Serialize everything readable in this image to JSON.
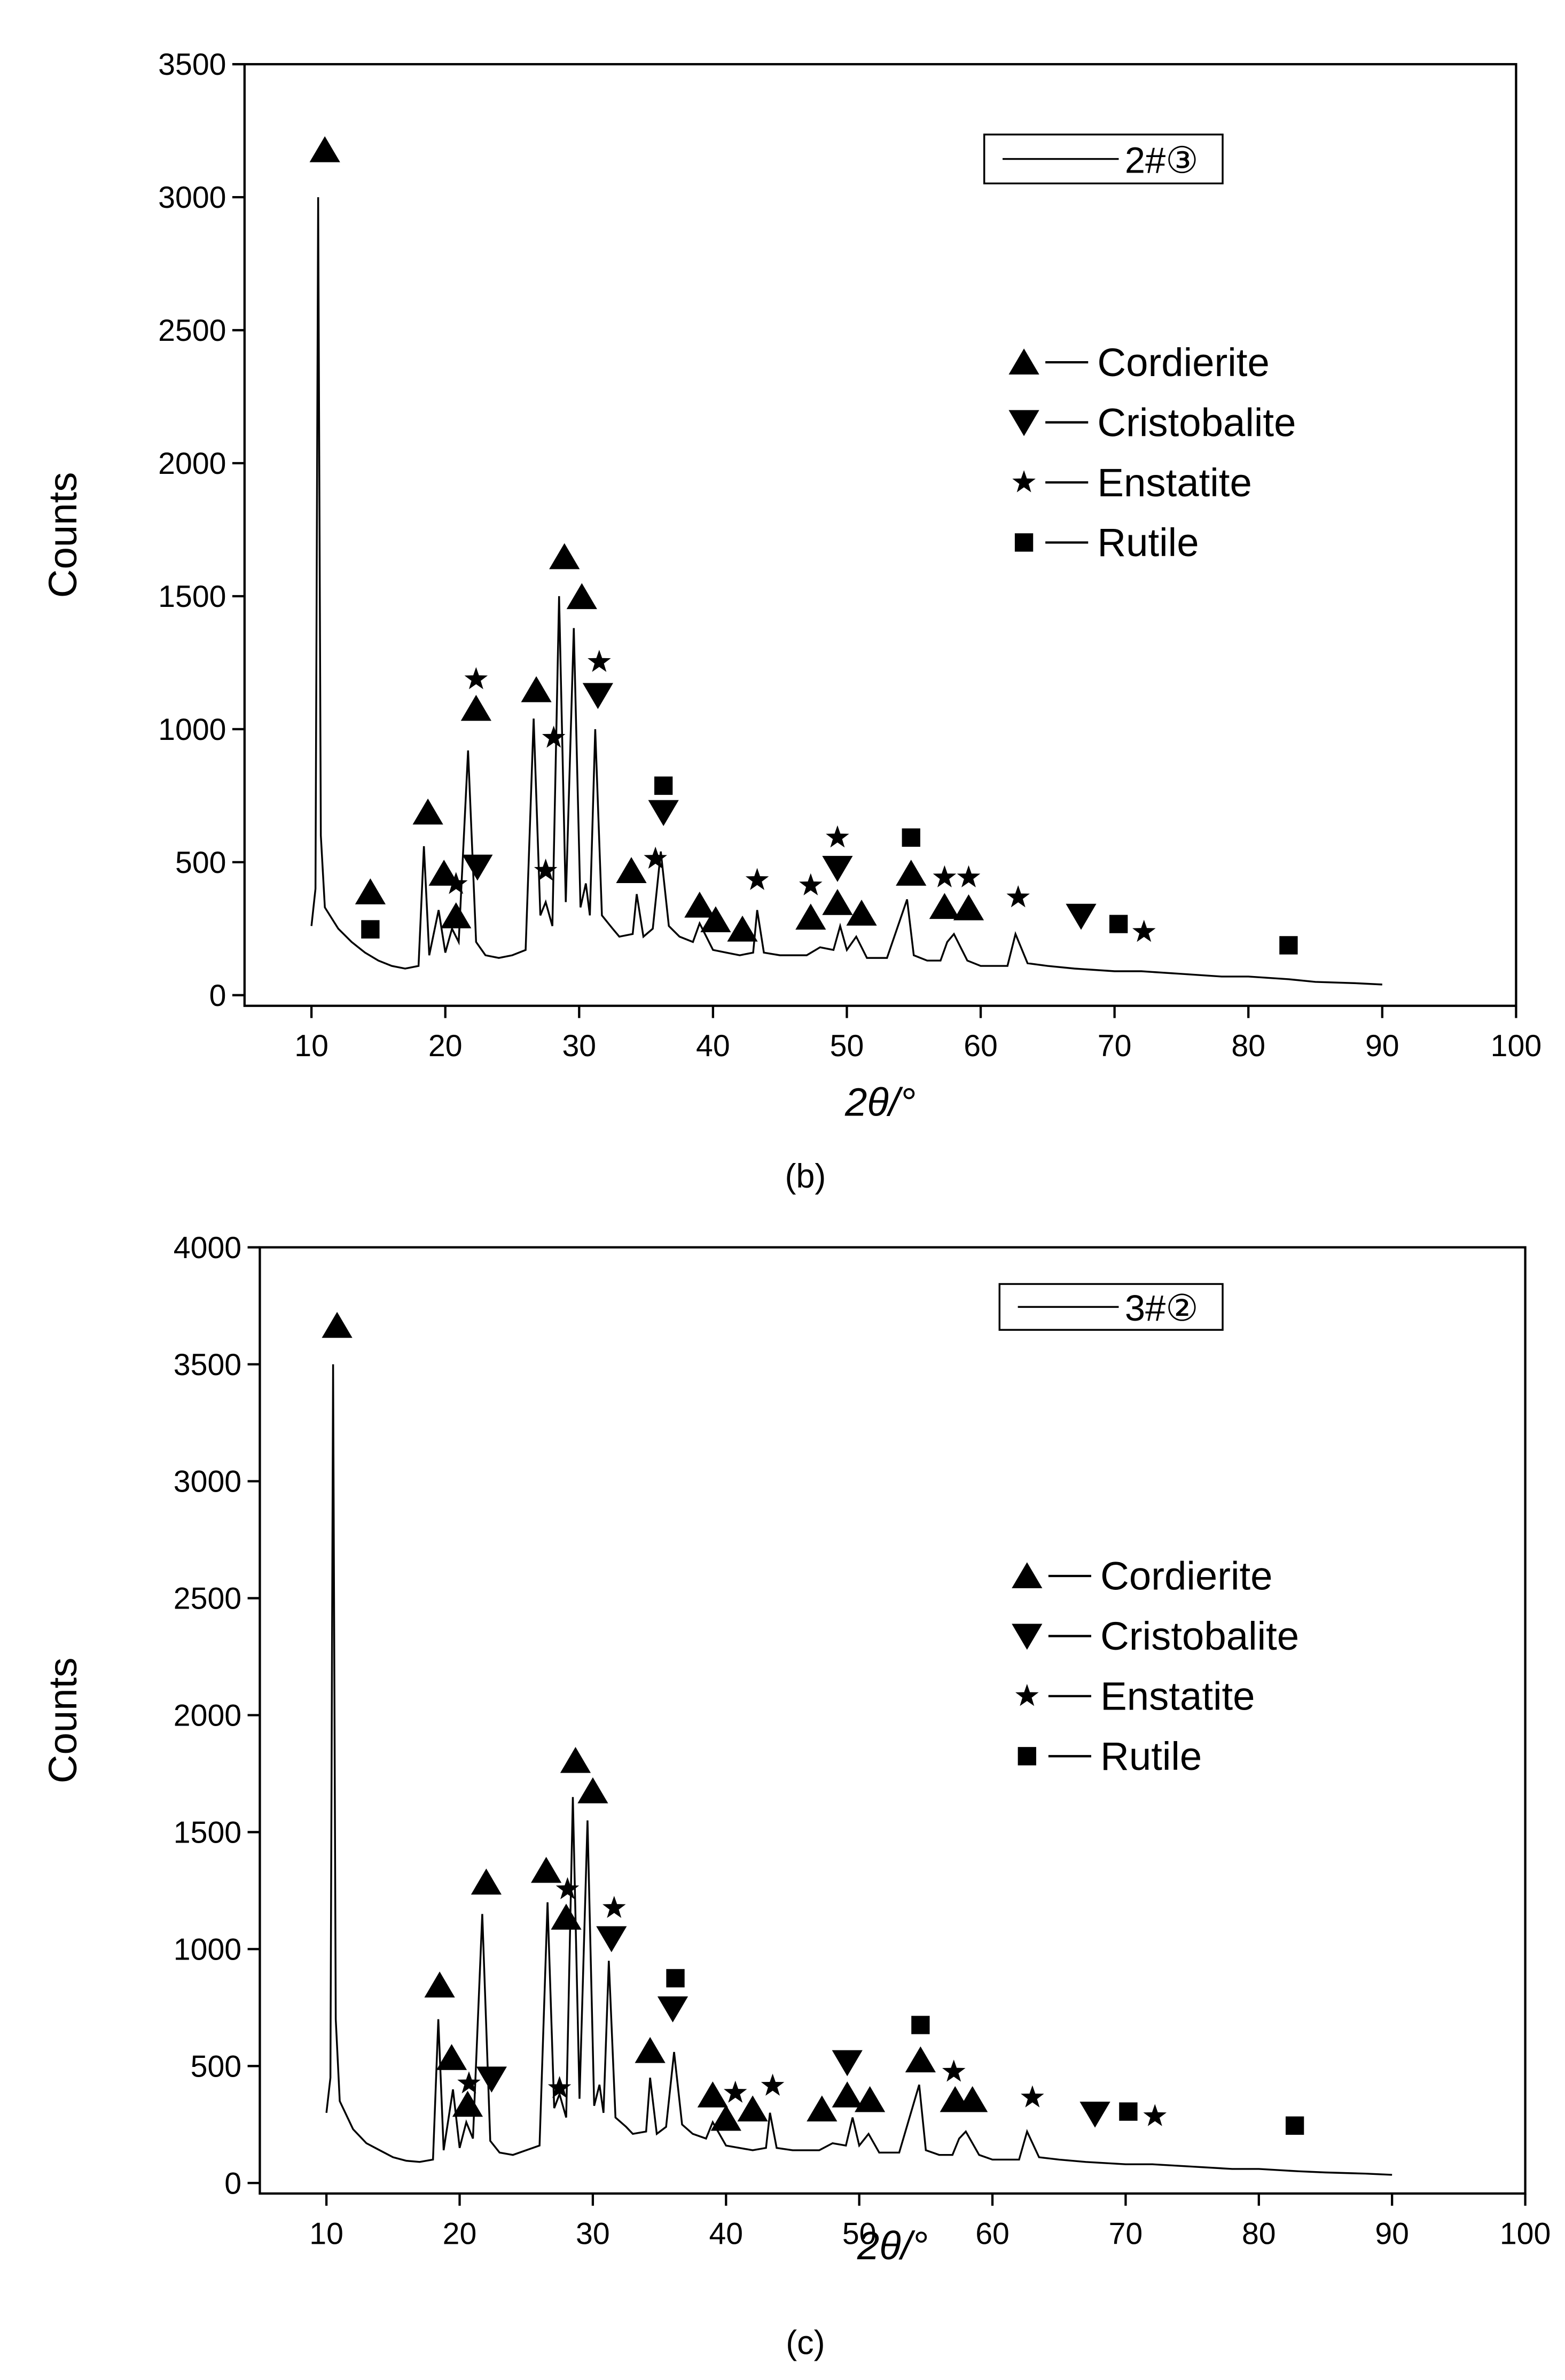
{
  "chart_data": [
    {
      "type": "line",
      "caption": "(b)",
      "xlabel": "2θ/°",
      "ylabel": "Counts",
      "xlim": [
        5,
        100
      ],
      "xticks": [
        10,
        20,
        30,
        40,
        50,
        60,
        70,
        80,
        90,
        100
      ],
      "ylim": [
        -40,
        3500
      ],
      "yticks": [
        0,
        500,
        1000,
        1500,
        2000,
        2500,
        3000,
        3500
      ],
      "x": [
        10,
        10.3,
        10.5,
        10.7,
        11,
        12,
        13,
        14,
        15,
        16,
        17,
        18,
        18.4,
        18.8,
        19.5,
        20,
        20.5,
        21,
        21.7,
        22.3,
        23,
        24,
        25,
        26,
        26.6,
        27.1,
        27.5,
        28,
        28.5,
        29,
        29.6,
        30.1,
        30.5,
        30.8,
        31.2,
        31.7,
        32.5,
        33,
        34,
        34.3,
        34.8,
        35.5,
        36.1,
        36.7,
        37.5,
        38.5,
        39,
        40,
        41,
        42,
        43,
        43.3,
        43.8,
        45,
        47,
        48,
        49,
        49.5,
        50,
        50.7,
        51.5,
        53,
        54.5,
        55,
        56,
        57,
        57.5,
        58,
        59,
        60,
        62,
        62.6,
        63.5,
        65,
        67,
        70,
        72,
        75,
        78,
        80,
        83,
        85,
        88,
        90
      ],
      "series": [
        {
          "name": "2#③",
          "color": "#000000",
          "values": [
            260,
            400,
            3000,
            600,
            330,
            250,
            200,
            160,
            130,
            110,
            100,
            110,
            560,
            150,
            320,
            160,
            250,
            200,
            920,
            200,
            150,
            140,
            150,
            170,
            1040,
            300,
            350,
            260,
            1500,
            350,
            1380,
            330,
            420,
            300,
            1000,
            300,
            250,
            220,
            230,
            380,
            220,
            250,
            540,
            260,
            220,
            200,
            270,
            170,
            160,
            150,
            160,
            320,
            160,
            150,
            150,
            180,
            170,
            260,
            170,
            220,
            140,
            140,
            360,
            150,
            130,
            130,
            200,
            230,
            130,
            110,
            110,
            230,
            120,
            110,
            100,
            90,
            90,
            80,
            70,
            70,
            60,
            50,
            45,
            40
          ]
        }
      ],
      "phases": [
        {
          "name": "Cordierite",
          "symbol": "triangle-up",
          "x": [
            11,
            14.4,
            18.7,
            19.9,
            20.8,
            22.3,
            26.8,
            28.9,
            30.2,
            33.9,
            39,
            40.2,
            42.2,
            47.3,
            49.3,
            51.1,
            54.8,
            57.3,
            59.1
          ],
          "y": [
            3120,
            330,
            630,
            400,
            240,
            1020,
            1090,
            1590,
            1440,
            410,
            280,
            225,
            190,
            235,
            290,
            250,
            400,
            275,
            270
          ]
        },
        {
          "name": "Cristobalite",
          "symbol": "triangle-down",
          "x": [
            22.4,
            31.4,
            36.3,
            49.3,
            67.5
          ],
          "y": [
            425,
            1070,
            630,
            420,
            240
          ]
        },
        {
          "name": "Enstatite",
          "symbol": "star",
          "x": [
            20.8,
            22.3,
            27.5,
            28.1,
            31.5,
            35.7,
            43.3,
            47.3,
            49.3,
            57.3,
            59.1,
            62.8,
            72.2
          ],
          "y": [
            360,
            1130,
            410,
            910,
            1195,
            455,
            375,
            355,
            535,
            385,
            385,
            310,
            180
          ]
        },
        {
          "name": "Rutile",
          "symbol": "square",
          "x": [
            14.4,
            36.3,
            54.8,
            70.3,
            83
          ],
          "y": [
            190,
            730,
            535,
            210,
            130
          ]
        }
      ]
    },
    {
      "type": "line",
      "caption": "(c)",
      "xlabel": "2θ/°",
      "ylabel": "Counts",
      "xlim": [
        5,
        100
      ],
      "xticks": [
        10,
        20,
        30,
        40,
        50,
        60,
        70,
        80,
        90,
        100
      ],
      "ylim": [
        -45,
        4000
      ],
      "yticks": [
        0,
        500,
        1000,
        1500,
        2000,
        2500,
        3000,
        3500,
        4000
      ],
      "x": [
        10,
        10.3,
        10.5,
        10.7,
        11,
        12,
        13,
        14,
        15,
        16,
        17,
        18,
        18.4,
        18.8,
        19.5,
        20,
        20.5,
        21,
        21.7,
        22.3,
        23,
        24,
        25,
        26,
        26.6,
        27.1,
        27.5,
        28,
        28.5,
        29,
        29.6,
        30.1,
        30.5,
        30.8,
        31.2,
        31.7,
        32.5,
        33,
        34,
        34.3,
        34.8,
        35.5,
        36.1,
        36.7,
        37.5,
        38.5,
        39,
        40,
        41,
        42,
        43,
        43.3,
        43.8,
        45,
        47,
        48,
        49,
        49.5,
        50,
        50.7,
        51.5,
        53,
        54.5,
        55,
        56,
        57,
        57.5,
        58,
        59,
        60,
        62,
        62.6,
        63.5,
        65,
        67,
        70,
        72,
        75,
        78,
        80,
        83,
        85,
        88,
        90
      ],
      "series": [
        {
          "name": "3#②",
          "color": "#000000",
          "values": [
            300,
            450,
            3500,
            700,
            350,
            230,
            170,
            140,
            110,
            95,
            90,
            100,
            700,
            140,
            400,
            150,
            260,
            190,
            1150,
            180,
            130,
            120,
            140,
            160,
            1200,
            320,
            380,
            280,
            1650,
            360,
            1550,
            330,
            420,
            300,
            950,
            280,
            240,
            210,
            220,
            450,
            210,
            240,
            560,
            250,
            210,
            190,
            260,
            160,
            150,
            140,
            150,
            300,
            150,
            140,
            140,
            170,
            160,
            280,
            160,
            210,
            130,
            130,
            420,
            140,
            120,
            120,
            190,
            220,
            120,
            100,
            100,
            220,
            110,
            100,
            90,
            80,
            80,
            70,
            60,
            60,
            50,
            45,
            40,
            35
          ]
        }
      ],
      "phases": [
        {
          "name": "Cordierite",
          "symbol": "triangle-up",
          "x": [
            10.8,
            18.5,
            19.4,
            20.6,
            22,
            26.5,
            28,
            28.7,
            30,
            34.3,
            39,
            40,
            42,
            47.2,
            49.1,
            50.8,
            54.6,
            57.2,
            58.5
          ],
          "y": [
            3600,
            780,
            470,
            270,
            1220,
            1270,
            1070,
            1740,
            1610,
            500,
            310,
            210,
            250,
            250,
            310,
            290,
            460,
            290,
            290
          ]
        },
        {
          "name": "Cristobalite",
          "symbol": "triangle-down",
          "x": [
            22.4,
            31.4,
            36,
            49.1,
            67.7
          ],
          "y": [
            380,
            980,
            680,
            450,
            230
          ]
        },
        {
          "name": "Enstatite",
          "symbol": "star",
          "x": [
            20.7,
            27.5,
            28.1,
            31.6,
            40.7,
            43.5,
            57.1,
            63,
            72.2
          ],
          "y": [
            360,
            340,
            1190,
            1110,
            320,
            350,
            410,
            300,
            220
          ]
        },
        {
          "name": "Rutile",
          "symbol": "square",
          "x": [
            36.2,
            54.6,
            70.2,
            82.7
          ],
          "y": [
            810,
            610,
            240,
            180
          ]
        }
      ]
    }
  ]
}
